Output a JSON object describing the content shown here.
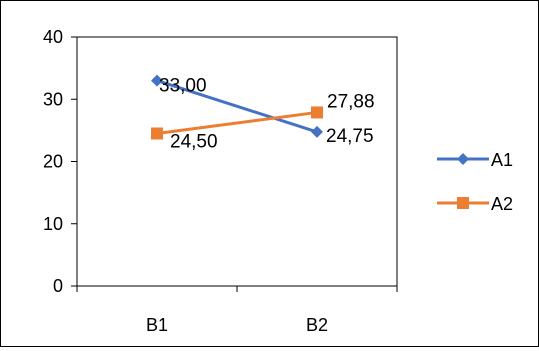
{
  "chart_data": {
    "type": "line",
    "categories": [
      "B1",
      "B2"
    ],
    "series": [
      {
        "name": "A1",
        "values": [
          33.0,
          24.75
        ],
        "labels": [
          "33,00",
          "24,75"
        ],
        "color": "#4472C4",
        "marker": "diamond"
      },
      {
        "name": "A2",
        "values": [
          24.5,
          27.88
        ],
        "labels": [
          "24,50",
          "27,88"
        ],
        "color": "#ED7D31",
        "marker": "square"
      }
    ],
    "ylim": [
      0,
      40
    ],
    "yticks": [
      0,
      10,
      20,
      30,
      40
    ],
    "grid": false,
    "legend": "right",
    "title": "",
    "xlabel": "",
    "ylabel": ""
  }
}
